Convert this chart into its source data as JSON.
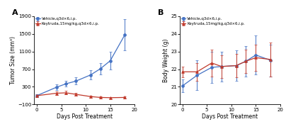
{
  "panel_A": {
    "title": "A",
    "xlabel": "Days Post Treatment",
    "ylabel": "Tumor Size (mm³)",
    "xlim": [
      -0.5,
      20
    ],
    "ylim": [
      -100,
      1900
    ],
    "yticks": [
      -100,
      300,
      700,
      1100,
      1500,
      1900
    ],
    "xticks": [
      0,
      5,
      10,
      15,
      20
    ],
    "vehicle": {
      "x": [
        0,
        4,
        6,
        8,
        11,
        13,
        15,
        18
      ],
      "y": [
        100,
        290,
        370,
        430,
        570,
        710,
        890,
        1480
      ],
      "yerr": [
        30,
        60,
        70,
        80,
        110,
        130,
        200,
        350
      ],
      "color": "#4472C4",
      "label": "Vehicle,q3d×6,i.p.",
      "marker": "o"
    },
    "keytruda": {
      "x": [
        0,
        4,
        6,
        8,
        11,
        13,
        15,
        18
      ],
      "y": [
        100,
        155,
        165,
        130,
        80,
        60,
        55,
        60
      ],
      "yerr": [
        30,
        35,
        40,
        35,
        25,
        20,
        20,
        20
      ],
      "color": "#C0392B",
      "label": "Keytruda,15mg/kg,q3d×6,i.p.",
      "marker": "^"
    }
  },
  "panel_B": {
    "title": "B",
    "xlabel": "Days Post Treatment",
    "ylabel": "Body Weight (g)",
    "xlim": [
      -0.5,
      20
    ],
    "ylim": [
      20,
      25
    ],
    "yticks": [
      20,
      21,
      22,
      23,
      24,
      25
    ],
    "xticks": [
      0,
      5,
      10,
      15,
      20
    ],
    "vehicle": {
      "x": [
        0,
        3,
        6,
        8,
        11,
        13,
        15,
        18
      ],
      "y": [
        21.05,
        21.65,
        22.1,
        22.15,
        22.2,
        22.45,
        22.8,
        22.5
      ],
      "yerr": [
        0.35,
        0.85,
        0.9,
        0.85,
        0.85,
        0.85,
        1.1,
        0.9
      ],
      "color": "#4472C4",
      "label": "Vehicle,q3d×6,i.p.",
      "marker": "o"
    },
    "keytruda": {
      "x": [
        0,
        3,
        6,
        8,
        11,
        13,
        15,
        18
      ],
      "y": [
        21.85,
        21.85,
        22.35,
        22.15,
        22.2,
        22.45,
        22.65,
        22.55
      ],
      "yerr": [
        0.3,
        0.5,
        0.75,
        0.65,
        0.65,
        0.65,
        0.75,
        0.95
      ],
      "color": "#C0392B",
      "label": "Keytruda,15mg/kg,q3d×6,i.p.",
      "marker": "^"
    }
  }
}
